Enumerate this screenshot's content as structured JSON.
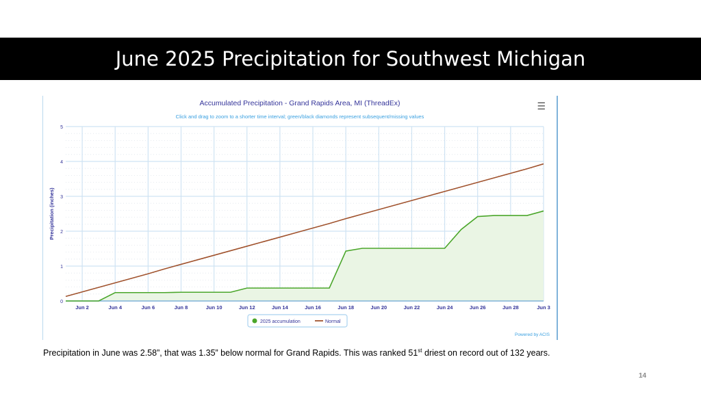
{
  "slide": {
    "title": "June 2025 Precipitation for Southwest Michigan",
    "caption_part1": "Precipitation in June was 2.58”, that was 1.35” below normal for Grand Rapids.  This was ranked 51",
    "caption_sup": "st",
    "caption_part2": " driest on record out of 132 years.",
    "page_number": "14"
  },
  "chart": {
    "menu_icon": "hamburger-menu-icon",
    "powered_by": "Powered by ACIS"
  },
  "chart_data": {
    "type": "area",
    "title": "Accumulated Precipitation - Grand Rapids Area, MI (ThreadEx)",
    "subtitle": "Click and drag to zoom to a shorter time interval; green/black diamonds represent subsequent/missing values",
    "ylabel": "Precipitation (inches)",
    "xlabel": "",
    "ylim": [
      0,
      5
    ],
    "yticks": [
      "0",
      "1",
      "2",
      "3",
      "4",
      "5"
    ],
    "xlim": [
      "Jun 1",
      "Jun 30"
    ],
    "xticks": [
      "Jun 2",
      "Jun 4",
      "Jun 6",
      "Jun 8",
      "Jun 10",
      "Jun 12",
      "Jun 14",
      "Jun 16",
      "Jun 18",
      "Jun 20",
      "Jun 22",
      "Jun 24",
      "Jun 26",
      "Jun 28",
      "Jun 3"
    ],
    "grid": true,
    "legend_position": "bottom-center",
    "x": [
      "Jun 1",
      "Jun 2",
      "Jun 3",
      "Jun 4",
      "Jun 5",
      "Jun 6",
      "Jun 7",
      "Jun 8",
      "Jun 9",
      "Jun 10",
      "Jun 11",
      "Jun 12",
      "Jun 13",
      "Jun 14",
      "Jun 15",
      "Jun 16",
      "Jun 17",
      "Jun 18",
      "Jun 19",
      "Jun 20",
      "Jun 21",
      "Jun 22",
      "Jun 23",
      "Jun 24",
      "Jun 25",
      "Jun 26",
      "Jun 27",
      "Jun 28",
      "Jun 29",
      "Jun 30"
    ],
    "series": [
      {
        "name": "2025 accumulation",
        "color": "#4aa62a",
        "fill": "#eaf5e4",
        "values": [
          0,
          0,
          0,
          0.24,
          0.24,
          0.24,
          0.24,
          0.25,
          0.25,
          0.25,
          0.25,
          0.37,
          0.37,
          0.37,
          0.37,
          0.37,
          0.37,
          1.43,
          1.51,
          1.51,
          1.51,
          1.51,
          1.51,
          1.51,
          2.05,
          2.42,
          2.45,
          2.45,
          2.45,
          2.58
        ]
      },
      {
        "name": "Normal",
        "color": "#a0522d",
        "values": [
          0.13,
          0.26,
          0.39,
          0.52,
          0.65,
          0.78,
          0.92,
          1.05,
          1.18,
          1.31,
          1.44,
          1.57,
          1.7,
          1.83,
          1.96,
          2.09,
          2.22,
          2.36,
          2.49,
          2.62,
          2.75,
          2.88,
          3.01,
          3.14,
          3.27,
          3.4,
          3.53,
          3.66,
          3.79,
          3.93
        ]
      }
    ]
  }
}
